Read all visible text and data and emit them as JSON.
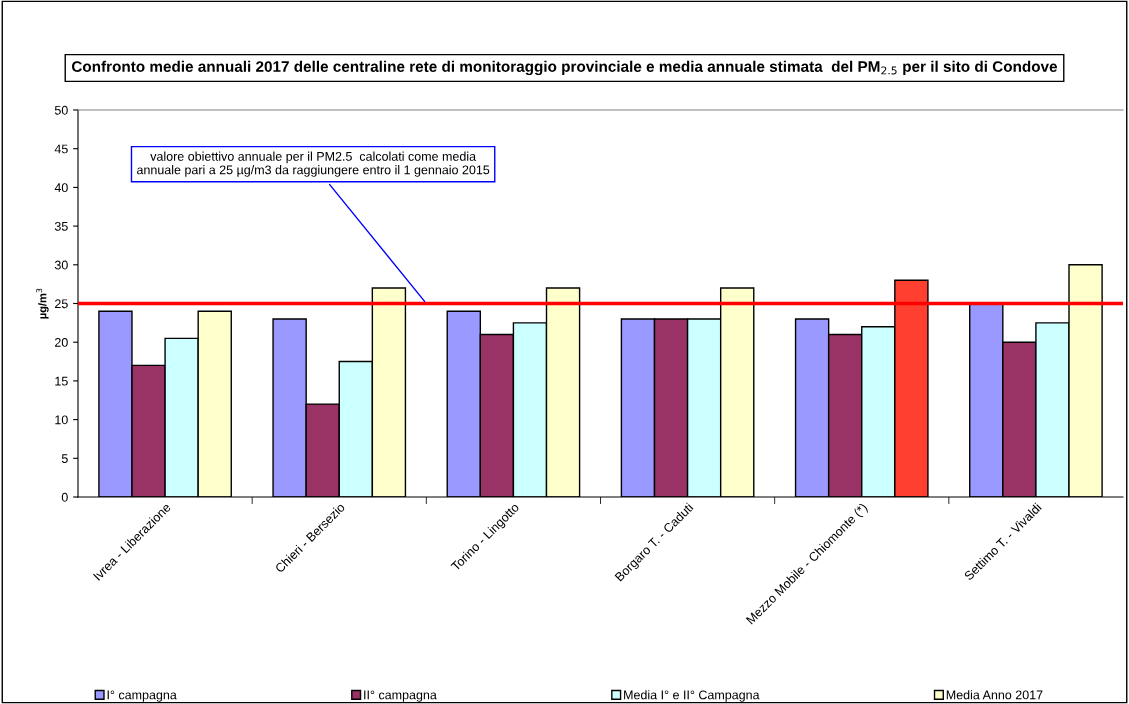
{
  "chart_data": {
    "type": "bar",
    "title": "Confronto medie annuali 2017 delle centraline rete di monitoraggio provinciale e media annuale stimata  del PM$_{2.5}$ per il sito di Condove",
    "ylabel": "µg/m$^{3}$",
    "categories": [
      "Ivrea - Liberazione",
      "Chieri - Bersezio",
      "Torino - Lingotto",
      "Borgaro T. - Caduti",
      "Mezzo Mobile - Chiomonte (*)",
      "Settimo T. - Vivaldi"
    ],
    "series": [
      {
        "name": "I° campagna",
        "color": "#9999ff",
        "values": [
          24,
          23,
          24,
          23,
          23,
          25
        ]
      },
      {
        "name": "II° campagna",
        "color": "#993366",
        "values": [
          17,
          12,
          21,
          23,
          21,
          20
        ]
      },
      {
        "name": "Media I° e II° Campagna",
        "color": "#ccffff",
        "values": [
          20.5,
          17.5,
          22.5,
          23,
          22,
          22.5
        ]
      },
      {
        "name": "Media Anno 2017",
        "color": "#ffffcc",
        "colors": [
          "#ffffcc",
          "#ffffcc",
          "#ffffcc",
          "#ffffcc",
          "#ff4030",
          "#ffffcc"
        ],
        "values": [
          24,
          27,
          27,
          27,
          28,
          30
        ]
      }
    ],
    "ylim": [
      0,
      50
    ],
    "yticks": [
      0,
      5,
      10,
      15,
      20,
      25,
      30,
      35,
      40,
      45,
      50
    ],
    "ref_lines": [
      {
        "axis": "y",
        "value": 25,
        "color": "#ff0000",
        "label": "valore obiettivo annuale per il PM2.5  calcolati come media\nannuale pari a 25 µg/m3 da raggiungere entro il 1 gennaio 2015"
      }
    ],
    "grid": false,
    "legend": "bottom"
  }
}
